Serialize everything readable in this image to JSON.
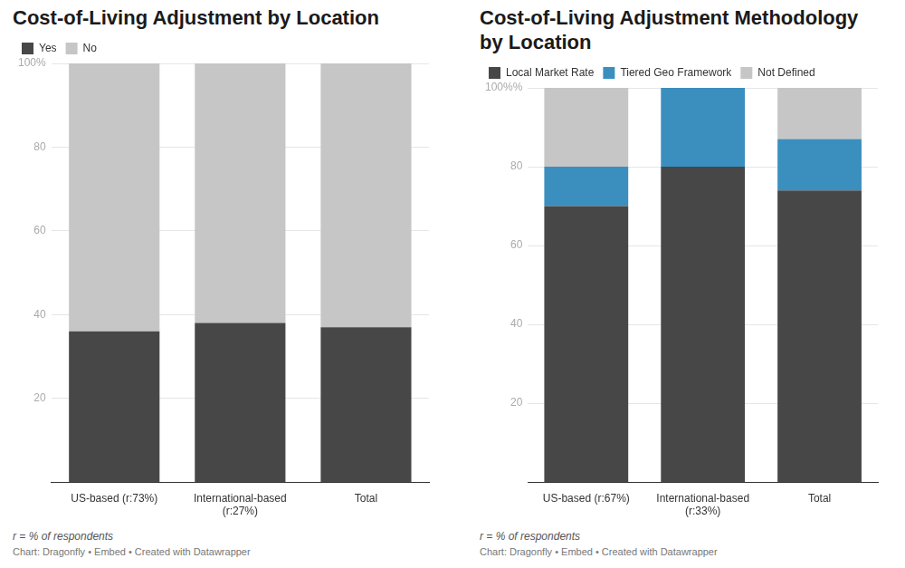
{
  "chart_data": [
    {
      "type": "bar",
      "title": "Cost-of-Living Adjustment by Location",
      "categories": [
        "US-based (r:73%)",
        "International-based (r:27%)",
        "Total"
      ],
      "series": [
        {
          "name": "Yes",
          "color": "#474747",
          "values": [
            36,
            38,
            37
          ]
        },
        {
          "name": "No",
          "color": "#c6c6c6",
          "values": [
            64,
            62,
            63
          ]
        }
      ],
      "ylim": [
        0,
        100
      ],
      "yticks": [
        20,
        40,
        60,
        80,
        {
          "value": 100,
          "label": "100%"
        }
      ],
      "stacked": true,
      "grid": true,
      "legend": "top-left",
      "annotations": [
        "r = % of respondents",
        "Chart: Dragonfly • Embed • Created with Datawrapper"
      ]
    },
    {
      "type": "bar",
      "title": "Cost-of-Living Adjustment Methodology by Location",
      "categories": [
        "US-based (r:67%)",
        "International-based (r:33%)",
        "Total"
      ],
      "series": [
        {
          "name": "Local Market Rate",
          "color": "#474747",
          "values": [
            70,
            80,
            74
          ]
        },
        {
          "name": "Tiered Geo Framework",
          "color": "#3a8fbf",
          "values": [
            10,
            20,
            13
          ]
        },
        {
          "name": "Not Defined",
          "color": "#c6c6c6",
          "values": [
            20,
            0,
            13
          ]
        }
      ],
      "ylim": [
        0,
        100
      ],
      "yticks": [
        20,
        40,
        60,
        80,
        {
          "value": 100,
          "label": "100%%"
        }
      ],
      "stacked": true,
      "grid": true,
      "legend": "top-left",
      "annotations": [
        "r = % of respondents",
        "Chart: Dragonfly • Embed • Created with Datawrapper"
      ]
    }
  ]
}
